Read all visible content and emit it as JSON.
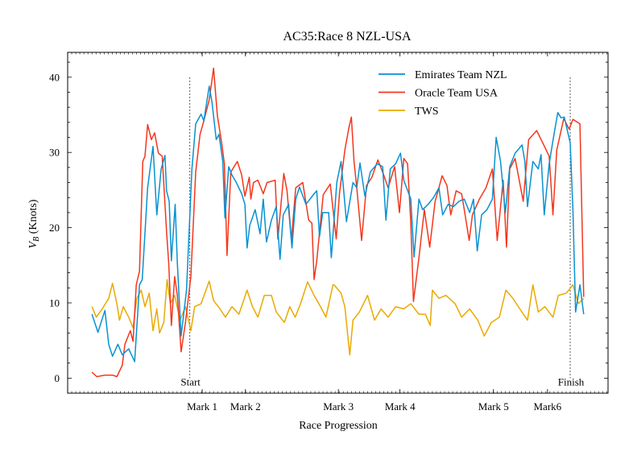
{
  "chart_data": {
    "type": "line",
    "title": "AC35:Race 8 NZL-USA",
    "xlabel": "Race Progression",
    "ylabel": "V_B (Knots)",
    "ylabel_main": "V",
    "ylabel_sub": "B",
    "ylabel_rest": " (Knots)",
    "xlim": [
      0,
      100
    ],
    "ylim": [
      -2,
      43.3
    ],
    "yticks": [
      0,
      10,
      20,
      30,
      40
    ],
    "yticks_labels": [
      "0",
      "10",
      "20",
      "30",
      "40"
    ],
    "xticks": [
      {
        "label": "Mark 1",
        "x": 24.9
      },
      {
        "label": "Mark 2",
        "x": 32.9
      },
      {
        "label": "Mark 3",
        "x": 50.1
      },
      {
        "label": "Mark 4",
        "x": 61.5
      },
      {
        "label": "Mark 5",
        "x": 78.8
      },
      {
        "label": "Mark6",
        "x": 88.8
      }
    ],
    "vlines": [
      {
        "label": "Start",
        "x": 22.6,
        "ymax": 40
      },
      {
        "label": "Finish",
        "x": 93.0,
        "ymax": 40
      }
    ],
    "grid": false,
    "legend_position": "top-right",
    "series": [
      {
        "name": "Emirates Team NZL",
        "color": "#0891d1",
        "points": [
          [
            4.5,
            8.5
          ],
          [
            5.6,
            6.1
          ],
          [
            6.9,
            9.0
          ],
          [
            7.6,
            4.5
          ],
          [
            8.3,
            2.9
          ],
          [
            9.3,
            4.5
          ],
          [
            10.1,
            3.1
          ],
          [
            11.3,
            3.9
          ],
          [
            12.4,
            2.2
          ],
          [
            13.3,
            12.4
          ],
          [
            13.8,
            13.1
          ],
          [
            14.8,
            25.3
          ],
          [
            15.8,
            30.8
          ],
          [
            16.5,
            21.7
          ],
          [
            17.3,
            27.8
          ],
          [
            18.0,
            29.6
          ],
          [
            18.3,
            24.9
          ],
          [
            18.8,
            23.5
          ],
          [
            19.2,
            15.6
          ],
          [
            19.9,
            23.1
          ],
          [
            20.3,
            15.3
          ],
          [
            21.0,
            5.6
          ],
          [
            22.0,
            11.7
          ],
          [
            23.0,
            27.8
          ],
          [
            23.7,
            33.8
          ],
          [
            24.7,
            35.1
          ],
          [
            25.2,
            34.2
          ],
          [
            26.2,
            38.8
          ],
          [
            26.7,
            36.7
          ],
          [
            27.5,
            31.7
          ],
          [
            28.0,
            32.4
          ],
          [
            28.7,
            28.8
          ],
          [
            29.1,
            21.3
          ],
          [
            29.8,
            28.1
          ],
          [
            30.4,
            27.0
          ],
          [
            31.2,
            26.0
          ],
          [
            32.2,
            24.5
          ],
          [
            32.8,
            23.1
          ],
          [
            33.2,
            17.3
          ],
          [
            33.7,
            20.3
          ],
          [
            34.7,
            22.4
          ],
          [
            35.6,
            19.2
          ],
          [
            36.2,
            23.8
          ],
          [
            36.8,
            18.1
          ],
          [
            37.7,
            21.0
          ],
          [
            38.6,
            22.8
          ],
          [
            39.3,
            15.8
          ],
          [
            39.9,
            21.7
          ],
          [
            40.9,
            23.1
          ],
          [
            41.5,
            17.3
          ],
          [
            42.2,
            23.8
          ],
          [
            42.9,
            25.4
          ],
          [
            44.1,
            23.1
          ],
          [
            45.6,
            24.5
          ],
          [
            46.1,
            24.9
          ],
          [
            46.6,
            18.8
          ],
          [
            47.2,
            22.0
          ],
          [
            48.3,
            22.0
          ],
          [
            48.8,
            16.0
          ],
          [
            49.8,
            26.0
          ],
          [
            50.6,
            28.8
          ],
          [
            51.6,
            20.8
          ],
          [
            52.8,
            26.0
          ],
          [
            53.5,
            25.3
          ],
          [
            54.1,
            28.6
          ],
          [
            55.0,
            24.2
          ],
          [
            56.0,
            27.4
          ],
          [
            57.3,
            28.5
          ],
          [
            58.3,
            28.1
          ],
          [
            58.9,
            21.0
          ],
          [
            59.7,
            27.8
          ],
          [
            60.7,
            28.5
          ],
          [
            61.6,
            29.9
          ],
          [
            62.2,
            26.3
          ],
          [
            63.5,
            23.8
          ],
          [
            64.1,
            16.1
          ],
          [
            65.0,
            23.8
          ],
          [
            65.7,
            22.4
          ],
          [
            66.7,
            23.1
          ],
          [
            67.7,
            24.0
          ],
          [
            68.7,
            25.3
          ],
          [
            69.4,
            21.7
          ],
          [
            70.4,
            23.1
          ],
          [
            71.4,
            22.8
          ],
          [
            72.4,
            23.5
          ],
          [
            73.4,
            23.8
          ],
          [
            74.4,
            22.0
          ],
          [
            75.1,
            23.8
          ],
          [
            75.8,
            16.9
          ],
          [
            76.6,
            21.7
          ],
          [
            77.6,
            22.4
          ],
          [
            78.6,
            23.8
          ],
          [
            79.3,
            32.0
          ],
          [
            80.1,
            28.8
          ],
          [
            81.0,
            22.0
          ],
          [
            81.8,
            28.1
          ],
          [
            82.8,
            29.9
          ],
          [
            84.1,
            31.0
          ],
          [
            84.6,
            28.8
          ],
          [
            85.1,
            22.8
          ],
          [
            86.1,
            28.8
          ],
          [
            87.1,
            27.8
          ],
          [
            87.6,
            29.7
          ],
          [
            88.2,
            21.7
          ],
          [
            89.1,
            28.5
          ],
          [
            90.0,
            32.4
          ],
          [
            90.7,
            35.3
          ],
          [
            91.3,
            34.6
          ],
          [
            91.9,
            34.7
          ],
          [
            93.0,
            31.3
          ],
          [
            93.5,
            22.4
          ],
          [
            94.0,
            8.8
          ],
          [
            94.8,
            12.4
          ],
          [
            95.5,
            8.5
          ]
        ]
      },
      {
        "name": "Oracle Team USA",
        "color": "#f4361c",
        "points": [
          [
            4.5,
            0.8
          ],
          [
            5.4,
            0.2
          ],
          [
            6.9,
            0.4
          ],
          [
            8.3,
            0.4
          ],
          [
            9.1,
            0.2
          ],
          [
            10.1,
            1.7
          ],
          [
            10.6,
            4.5
          ],
          [
            11.6,
            6.3
          ],
          [
            12.1,
            4.9
          ],
          [
            12.7,
            12.4
          ],
          [
            13.3,
            14.2
          ],
          [
            13.9,
            28.8
          ],
          [
            14.3,
            29.5
          ],
          [
            14.8,
            33.7
          ],
          [
            15.5,
            31.7
          ],
          [
            16.1,
            32.6
          ],
          [
            16.8,
            29.9
          ],
          [
            17.5,
            29.5
          ],
          [
            18.3,
            19.5
          ],
          [
            18.7,
            15.3
          ],
          [
            19.2,
            7.0
          ],
          [
            19.8,
            13.5
          ],
          [
            20.3,
            11.0
          ],
          [
            21.0,
            3.5
          ],
          [
            21.8,
            7.4
          ],
          [
            22.8,
            13.5
          ],
          [
            23.7,
            27.4
          ],
          [
            24.5,
            32.4
          ],
          [
            25.2,
            34.2
          ],
          [
            26.2,
            37.0
          ],
          [
            27.0,
            41.2
          ],
          [
            27.7,
            34.9
          ],
          [
            28.5,
            31.3
          ],
          [
            29.0,
            28.5
          ],
          [
            29.5,
            16.3
          ],
          [
            30.2,
            27.4
          ],
          [
            31.4,
            28.8
          ],
          [
            32.2,
            27.0
          ],
          [
            32.8,
            24.2
          ],
          [
            33.6,
            26.7
          ],
          [
            33.9,
            23.8
          ],
          [
            34.4,
            26.0
          ],
          [
            35.2,
            26.3
          ],
          [
            36.2,
            24.5
          ],
          [
            36.9,
            26.0
          ],
          [
            38.4,
            26.3
          ],
          [
            38.9,
            18.5
          ],
          [
            40.0,
            27.2
          ],
          [
            40.6,
            24.9
          ],
          [
            41.4,
            18.3
          ],
          [
            42.2,
            25.3
          ],
          [
            43.5,
            26.0
          ],
          [
            44.6,
            21.0
          ],
          [
            45.2,
            20.6
          ],
          [
            45.6,
            13.1
          ],
          [
            46.1,
            15.6
          ],
          [
            47.3,
            24.4
          ],
          [
            48.6,
            25.8
          ],
          [
            49.7,
            18.5
          ],
          [
            50.3,
            24.5
          ],
          [
            51.3,
            30.3
          ],
          [
            52.0,
            33.1
          ],
          [
            52.5,
            34.7
          ],
          [
            53.0,
            28.8
          ],
          [
            53.5,
            25.3
          ],
          [
            54.4,
            18.3
          ],
          [
            55.3,
            25.6
          ],
          [
            56.3,
            26.7
          ],
          [
            57.4,
            29.0
          ],
          [
            58.5,
            27.0
          ],
          [
            59.3,
            25.3
          ],
          [
            60.5,
            28.1
          ],
          [
            61.4,
            22.0
          ],
          [
            62.2,
            29.2
          ],
          [
            62.9,
            28.5
          ],
          [
            63.5,
            20.6
          ],
          [
            64.0,
            10.2
          ],
          [
            65.0,
            16.0
          ],
          [
            66.0,
            22.4
          ],
          [
            67.0,
            17.4
          ],
          [
            68.0,
            23.5
          ],
          [
            68.7,
            25.3
          ],
          [
            69.3,
            26.9
          ],
          [
            70.2,
            25.6
          ],
          [
            70.9,
            21.7
          ],
          [
            71.9,
            24.9
          ],
          [
            72.9,
            24.5
          ],
          [
            73.4,
            22.4
          ],
          [
            74.3,
            18.3
          ],
          [
            74.9,
            21.7
          ],
          [
            76.2,
            23.8
          ],
          [
            77.4,
            25.3
          ],
          [
            78.6,
            27.8
          ],
          [
            79.5,
            18.3
          ],
          [
            80.6,
            26.3
          ],
          [
            81.2,
            17.4
          ],
          [
            81.8,
            27.8
          ],
          [
            82.8,
            29.2
          ],
          [
            84.3,
            23.5
          ],
          [
            85.3,
            31.7
          ],
          [
            86.8,
            32.9
          ],
          [
            88.1,
            31.0
          ],
          [
            89.1,
            29.5
          ],
          [
            89.8,
            21.7
          ],
          [
            90.5,
            30.3
          ],
          [
            91.8,
            34.5
          ],
          [
            92.8,
            33.1
          ],
          [
            93.5,
            34.4
          ],
          [
            94.8,
            33.8
          ],
          [
            95.5,
            10.8
          ]
        ]
      },
      {
        "name": "TWS",
        "color": "#eaa900",
        "points": [
          [
            4.5,
            9.5
          ],
          [
            5.3,
            8.1
          ],
          [
            6.4,
            9.2
          ],
          [
            7.6,
            10.6
          ],
          [
            8.3,
            12.6
          ],
          [
            9.1,
            9.9
          ],
          [
            9.6,
            7.7
          ],
          [
            10.3,
            9.5
          ],
          [
            11.3,
            8.1
          ],
          [
            12.1,
            6.7
          ],
          [
            12.8,
            10.6
          ],
          [
            13.6,
            11.7
          ],
          [
            14.3,
            9.5
          ],
          [
            15.1,
            11.3
          ],
          [
            15.8,
            6.3
          ],
          [
            16.5,
            9.2
          ],
          [
            17.0,
            6.0
          ],
          [
            17.8,
            7.4
          ],
          [
            18.4,
            13.1
          ],
          [
            19.0,
            9.9
          ],
          [
            19.8,
            11.0
          ],
          [
            20.8,
            7.7
          ],
          [
            21.8,
            9.5
          ],
          [
            22.8,
            6.3
          ],
          [
            23.5,
            9.5
          ],
          [
            24.7,
            9.9
          ],
          [
            26.2,
            12.9
          ],
          [
            27.0,
            10.3
          ],
          [
            28.2,
            9.2
          ],
          [
            29.2,
            8.1
          ],
          [
            30.4,
            9.5
          ],
          [
            31.7,
            8.5
          ],
          [
            33.2,
            11.7
          ],
          [
            34.2,
            9.5
          ],
          [
            35.2,
            8.1
          ],
          [
            36.4,
            11.0
          ],
          [
            37.7,
            11.0
          ],
          [
            38.6,
            8.8
          ],
          [
            40.1,
            7.4
          ],
          [
            41.1,
            9.5
          ],
          [
            42.1,
            8.1
          ],
          [
            43.1,
            9.9
          ],
          [
            44.4,
            12.8
          ],
          [
            45.6,
            11.0
          ],
          [
            46.8,
            9.5
          ],
          [
            47.8,
            8.1
          ],
          [
            49.1,
            12.4
          ],
          [
            49.3,
            12.4
          ],
          [
            50.6,
            11.3
          ],
          [
            51.3,
            9.5
          ],
          [
            52.2,
            3.1
          ],
          [
            52.8,
            7.7
          ],
          [
            54.0,
            8.8
          ],
          [
            55.5,
            11.0
          ],
          [
            56.8,
            7.7
          ],
          [
            58.0,
            9.2
          ],
          [
            59.3,
            8.1
          ],
          [
            60.7,
            9.5
          ],
          [
            62.2,
            9.2
          ],
          [
            63.5,
            9.9
          ],
          [
            65.0,
            8.5
          ],
          [
            66.2,
            8.5
          ],
          [
            67.1,
            7.0
          ],
          [
            67.5,
            11.7
          ],
          [
            68.7,
            10.6
          ],
          [
            70.0,
            11.0
          ],
          [
            71.7,
            9.9
          ],
          [
            72.9,
            8.1
          ],
          [
            74.4,
            9.2
          ],
          [
            75.9,
            7.7
          ],
          [
            77.1,
            5.6
          ],
          [
            78.4,
            7.4
          ],
          [
            79.9,
            8.1
          ],
          [
            81.1,
            11.7
          ],
          [
            82.4,
            10.6
          ],
          [
            83.4,
            9.5
          ],
          [
            85.1,
            7.7
          ],
          [
            86.1,
            12.4
          ],
          [
            87.1,
            8.8
          ],
          [
            88.3,
            9.5
          ],
          [
            89.8,
            8.1
          ],
          [
            90.8,
            11.0
          ],
          [
            92.3,
            11.3
          ],
          [
            93.5,
            12.4
          ],
          [
            94.5,
            9.9
          ],
          [
            95.5,
            10.6
          ]
        ]
      }
    ]
  }
}
